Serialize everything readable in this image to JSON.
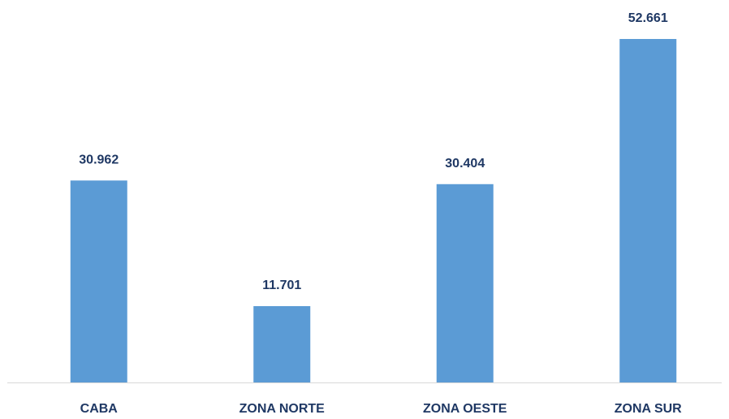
{
  "chart_data": {
    "type": "bar",
    "categories": [
      "CABA",
      "ZONA NORTE",
      "ZONA OESTE",
      "ZONA SUR"
    ],
    "values": [
      30962,
      11701,
      30404,
      52661
    ],
    "value_labels": [
      "30.962",
      "11.701",
      "30.404",
      "52.661"
    ],
    "color": "#5b9bd5"
  }
}
